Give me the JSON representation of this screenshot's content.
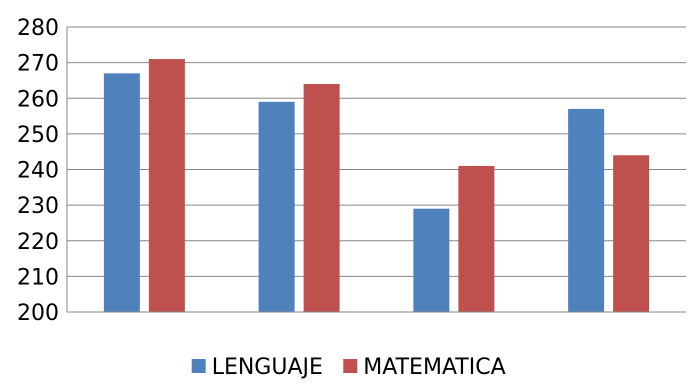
{
  "chart_data": {
    "type": "bar",
    "categories": [
      "",
      "",
      "",
      ""
    ],
    "series": [
      {
        "name": "LENGUAJE",
        "color": "#4f81bd",
        "values": [
          267,
          259,
          229,
          257
        ]
      },
      {
        "name": "MATEMATICA",
        "color": "#c0504d",
        "values": [
          271,
          264,
          241,
          244
        ]
      }
    ],
    "ylim": [
      200,
      280
    ],
    "yticks": [
      200,
      210,
      220,
      230,
      240,
      250,
      260,
      270,
      280
    ],
    "grid": true,
    "legend": "bottom",
    "title": "",
    "xlabel": "",
    "ylabel": ""
  }
}
